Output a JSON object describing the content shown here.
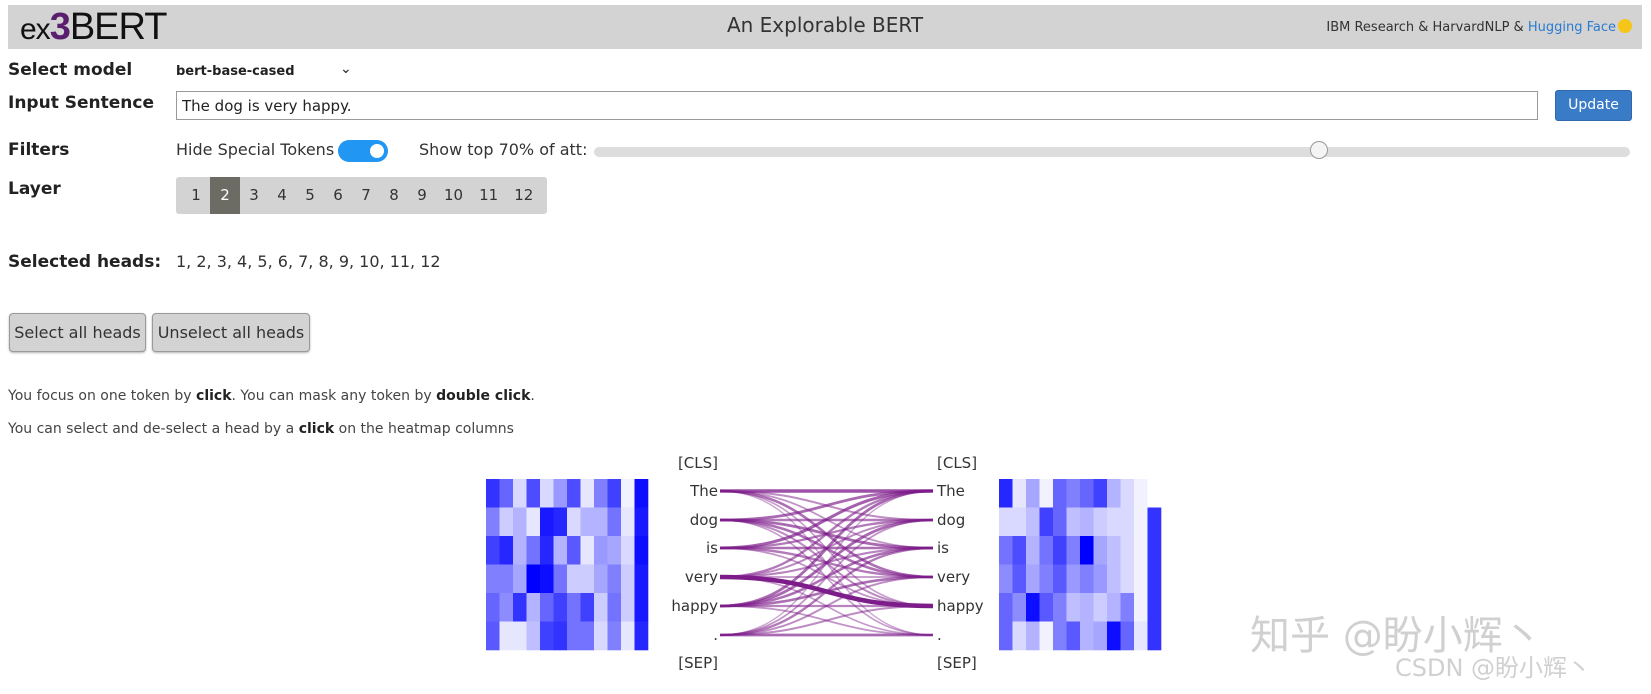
{
  "header": {
    "logo": {
      "ex": "ex",
      "three": "3",
      "bert": "BERT"
    },
    "title": "An Explorable BERT",
    "credit_text": "IBM Research & HarvardNLP & ",
    "credit_link": "Hugging Face"
  },
  "controls": {
    "select_model_label": "Select model",
    "model_value": "bert-base-cased",
    "input_sentence_label": "Input Sentence",
    "input_value": "The dog is very happy.",
    "update_label": "Update",
    "filters_label": "Filters",
    "hide_special_label": "Hide Special Tokens",
    "hide_special_on": true,
    "att_label": "Show top 70% of att:",
    "att_value_fraction": 0.7,
    "layer_label": "Layer",
    "layers": [
      "1",
      "2",
      "3",
      "4",
      "5",
      "6",
      "7",
      "8",
      "9",
      "10",
      "11",
      "12"
    ],
    "active_layer": "2",
    "selected_heads_label": "Selected heads:",
    "selected_heads_value": "1, 2, 3, 4, 5, 6, 7, 8, 9, 10, 11, 12",
    "select_all_label": "Select all heads",
    "unselect_all_label": "Unselect all heads"
  },
  "help": {
    "line1_a": "You focus on one token by ",
    "line1_b": "click",
    "line1_c": ". You can mask any token by ",
    "line1_d": "double click",
    "line1_e": ".",
    "line2_a": "You can select and de-select a head by a ",
    "line2_b": "click",
    "line2_c": " on the heatmap columns"
  },
  "attention": {
    "left_tokens": [
      "[CLS]",
      "The",
      "dog",
      "is",
      "very",
      "happy",
      ".",
      "[SEP]"
    ],
    "right_tokens": [
      "[CLS]",
      "The",
      "dog",
      "is",
      "very",
      "happy",
      ".",
      "[SEP]"
    ],
    "color_line": "#7d1d8a",
    "color_heat": "#0000ff",
    "left_heatmap": [
      [
        0.8,
        0.6,
        0.15,
        0.7,
        0.15,
        0.4,
        0.7,
        0.1,
        0.5,
        0.75,
        0.05,
        0.95
      ],
      [
        0.5,
        0.2,
        0.3,
        0.1,
        0.9,
        0.85,
        0.15,
        0.3,
        0.3,
        0.55,
        0.1,
        0.9
      ],
      [
        0.75,
        0.85,
        0.3,
        0.55,
        0.85,
        0.3,
        0.65,
        0.1,
        0.4,
        0.35,
        0.15,
        0.95
      ],
      [
        0.5,
        0.5,
        0.35,
        1.0,
        0.95,
        0.55,
        0.2,
        0.2,
        0.35,
        0.5,
        0.2,
        0.9
      ],
      [
        0.6,
        0.45,
        0.8,
        0.3,
        0.6,
        0.75,
        0.55,
        0.75,
        0.2,
        0.55,
        0.2,
        0.9
      ],
      [
        0.65,
        0.1,
        0.1,
        0.25,
        0.75,
        0.8,
        0.55,
        0.55,
        0.15,
        0.5,
        0.1,
        0.85
      ]
    ],
    "right_heatmap": [
      [
        0.85,
        0.1,
        0.35,
        0.05,
        0.6,
        0.5,
        0.6,
        0.75,
        0.3,
        0.15,
        0.05,
        0.0
      ],
      [
        0.15,
        0.15,
        0.25,
        0.75,
        0.6,
        0.25,
        0.3,
        0.2,
        0.15,
        0.15,
        0.05,
        0.8
      ],
      [
        0.55,
        0.7,
        0.3,
        0.55,
        0.75,
        0.5,
        1.0,
        0.35,
        0.25,
        0.15,
        0.05,
        0.8
      ],
      [
        0.45,
        0.65,
        0.35,
        0.5,
        0.65,
        0.4,
        0.5,
        0.4,
        0.25,
        0.15,
        0.05,
        0.8
      ],
      [
        0.6,
        0.45,
        0.95,
        0.65,
        0.5,
        0.25,
        0.3,
        0.2,
        0.3,
        0.5,
        0.05,
        0.8
      ],
      [
        0.6,
        0.15,
        0.3,
        0.05,
        0.5,
        0.65,
        0.3,
        0.35,
        0.95,
        0.6,
        0.1,
        0.8
      ]
    ],
    "edges": [
      [
        0,
        0,
        0.7
      ],
      [
        0,
        1,
        0.35
      ],
      [
        0,
        2,
        0.3
      ],
      [
        0,
        3,
        0.5
      ],
      [
        0,
        4,
        0.25
      ],
      [
        0,
        5,
        0.2
      ],
      [
        1,
        0,
        0.55
      ],
      [
        1,
        1,
        0.45
      ],
      [
        1,
        2,
        0.55
      ],
      [
        1,
        3,
        0.5
      ],
      [
        1,
        4,
        0.35
      ],
      [
        1,
        5,
        0.25
      ],
      [
        2,
        0,
        0.6
      ],
      [
        2,
        1,
        0.45
      ],
      [
        2,
        2,
        0.5
      ],
      [
        2,
        3,
        0.45
      ],
      [
        2,
        4,
        0.3
      ],
      [
        3,
        4,
        1.0
      ],
      [
        3,
        0,
        0.45
      ],
      [
        3,
        1,
        0.35
      ],
      [
        3,
        2,
        0.4
      ],
      [
        3,
        3,
        0.3
      ],
      [
        3,
        5,
        0.25
      ],
      [
        4,
        0,
        0.55
      ],
      [
        4,
        1,
        0.55
      ],
      [
        4,
        2,
        0.5
      ],
      [
        4,
        3,
        0.5
      ],
      [
        4,
        4,
        0.4
      ],
      [
        4,
        5,
        0.3
      ],
      [
        5,
        0,
        0.2
      ],
      [
        5,
        1,
        0.3
      ],
      [
        5,
        2,
        0.45
      ],
      [
        5,
        3,
        0.35
      ],
      [
        5,
        4,
        0.35
      ],
      [
        5,
        5,
        0.55
      ]
    ]
  },
  "watermark": {
    "zhihu": "知乎 @盼小辉丶",
    "csdn": "CSDN @盼小辉丶"
  }
}
